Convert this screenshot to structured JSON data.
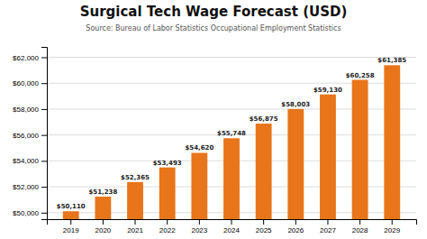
{
  "chart_data": {
    "type": "bar",
    "title": "Surgical Tech Wage Forecast (USD)",
    "subtitle": "Source: Bureau of Labor Statistics Occupational Employment Statistics",
    "categories": [
      "2019",
      "2020",
      "2021",
      "2022",
      "2023",
      "2024",
      "2025",
      "2026",
      "2027",
      "2028",
      "2029"
    ],
    "values": [
      50110,
      51238,
      52365,
      53493,
      54620,
      55748,
      56875,
      58003,
      59130,
      60258,
      61385
    ],
    "value_labels": [
      "$50,110",
      "$51,238",
      "$52,365",
      "$53,493",
      "$54,620",
      "$55,748",
      "$56,875",
      "$58,003",
      "$59,130",
      "$60,258",
      "$61,385"
    ],
    "data_labels": true,
    "color": "#E8751A",
    "ylim": [
      49500,
      62800
    ],
    "yticks": [
      {
        "value": 50000,
        "label": "$50,000"
      },
      {
        "value": 52000,
        "label": "$52,000"
      },
      {
        "value": 54000,
        "label": "$54,000"
      },
      {
        "value": 56000,
        "label": "$56,000"
      },
      {
        "value": 58000,
        "label": "$58,000"
      },
      {
        "value": 60000,
        "label": "$60,000"
      },
      {
        "value": 62000,
        "label": "$62,000"
      }
    ],
    "grid": true
  }
}
